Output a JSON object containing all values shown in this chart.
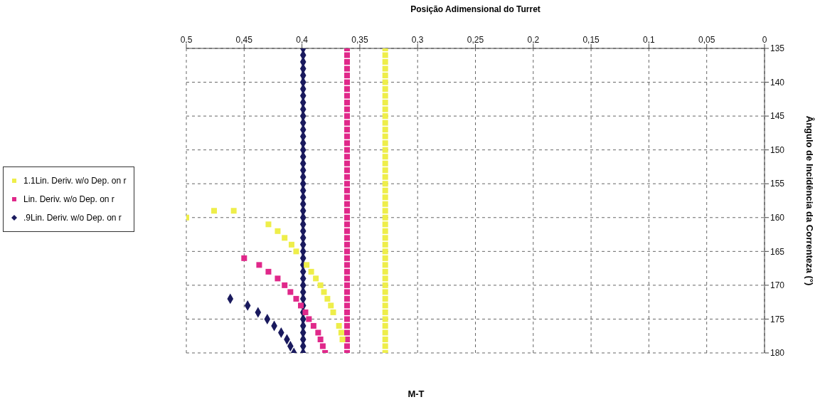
{
  "chart_data": {
    "type": "scatter",
    "title": "M-T",
    "xlabel": "Posição Adimensional do Turret",
    "ylabel": "Ângulo de Incidência da Correnteza (°)",
    "xlim": [
      0.5,
      0
    ],
    "ylim": [
      180,
      135
    ],
    "xticks": [
      0,
      {
        "value": 0.05,
        "label": "0,05"
      },
      {
        "value": 0.1,
        "label": "0,1"
      },
      {
        "value": 0.15,
        "label": "0,15"
      },
      {
        "value": 0.2,
        "label": "0,2"
      },
      {
        "value": 0.25,
        "label": "0,25"
      },
      {
        "value": 0.3,
        "label": "0,3"
      },
      {
        "value": 0.35,
        "label": "0,35"
      },
      {
        "value": 0.4,
        "label": "0,4"
      },
      {
        "value": 0.45,
        "label": "0,45"
      },
      {
        "value": 0.5,
        "label": "0,5"
      }
    ],
    "yticks": [
      135,
      140,
      145,
      150,
      155,
      160,
      165,
      170,
      175,
      180
    ],
    "grid": true,
    "legend": "left",
    "series": [
      {
        "name": ".9Lin. Deriv. w/o Dep. on r",
        "color": "#1a1a5e",
        "marker": "diamond",
        "x": [
          0.399,
          0.399,
          0.399,
          0.399,
          0.399,
          0.399,
          0.399,
          0.399,
          0.399,
          0.399,
          0.399,
          0.399,
          0.399,
          0.399,
          0.399,
          0.399,
          0.399,
          0.399,
          0.399,
          0.399,
          0.399,
          0.399,
          0.399,
          0.399,
          0.399,
          0.399,
          0.399,
          0.399,
          0.399,
          0.399,
          0.399,
          0.399,
          0.399,
          0.399,
          0.399,
          0.399,
          0.399,
          0.399,
          0.399,
          0.399,
          0.399,
          0.399,
          0.399,
          0.399,
          0.399,
          0.399,
          0.462,
          0.447,
          0.438,
          0.43,
          0.424,
          0.418,
          0.413,
          0.41,
          0.407
        ],
        "values": [
          135,
          136,
          137,
          138,
          139,
          140,
          141,
          142,
          143,
          144,
          145,
          146,
          147,
          148,
          149,
          150,
          151,
          152,
          153,
          154,
          155,
          156,
          157,
          158,
          159,
          160,
          161,
          162,
          163,
          164,
          165,
          166,
          167,
          168,
          169,
          170,
          171,
          172,
          173,
          174,
          175,
          176,
          177,
          178,
          179,
          180,
          172,
          173,
          174,
          175,
          176,
          177,
          178,
          179,
          180
        ]
      },
      {
        "name": "Lin. Deriv. w/o Dep. on r",
        "color": "#e0288a",
        "marker": "square",
        "x": [
          0.361,
          0.361,
          0.361,
          0.361,
          0.361,
          0.361,
          0.361,
          0.361,
          0.361,
          0.361,
          0.361,
          0.361,
          0.361,
          0.361,
          0.361,
          0.361,
          0.361,
          0.361,
          0.361,
          0.361,
          0.361,
          0.361,
          0.361,
          0.361,
          0.361,
          0.361,
          0.361,
          0.361,
          0.361,
          0.361,
          0.361,
          0.361,
          0.361,
          0.361,
          0.361,
          0.361,
          0.361,
          0.361,
          0.361,
          0.361,
          0.361,
          0.361,
          0.361,
          0.361,
          0.361,
          0.361,
          0.45,
          0.437,
          0.429,
          0.421,
          0.415,
          0.41,
          0.405,
          0.401,
          0.397,
          0.394,
          0.39,
          0.386,
          0.384,
          0.382,
          0.38
        ],
        "values": [
          135,
          136,
          137,
          138,
          139,
          140,
          141,
          142,
          143,
          144,
          145,
          146,
          147,
          148,
          149,
          150,
          151,
          152,
          153,
          154,
          155,
          156,
          157,
          158,
          159,
          160,
          161,
          162,
          163,
          164,
          165,
          166,
          167,
          168,
          169,
          170,
          171,
          172,
          173,
          174,
          175,
          176,
          177,
          178,
          179,
          180,
          166,
          167,
          168,
          169,
          170,
          171,
          172,
          173,
          174,
          175,
          176,
          177,
          178,
          179,
          180
        ]
      },
      {
        "name": "1.1Lin. Deriv. w/o Dep. on r",
        "color": "#eeee4a",
        "marker": "square",
        "x": [
          0.328,
          0.328,
          0.328,
          0.328,
          0.328,
          0.328,
          0.328,
          0.328,
          0.328,
          0.328,
          0.328,
          0.328,
          0.328,
          0.328,
          0.328,
          0.328,
          0.328,
          0.328,
          0.328,
          0.328,
          0.328,
          0.328,
          0.328,
          0.328,
          0.328,
          0.328,
          0.328,
          0.328,
          0.328,
          0.328,
          0.328,
          0.328,
          0.328,
          0.328,
          0.328,
          0.328,
          0.328,
          0.328,
          0.328,
          0.328,
          0.328,
          0.328,
          0.328,
          0.328,
          0.328,
          0.328,
          0.476,
          0.459,
          0.5,
          0.429,
          0.421,
          0.415,
          0.409,
          0.405,
          0.396,
          0.392,
          0.388,
          0.384,
          0.381,
          0.378,
          0.375,
          0.373,
          0.368,
          0.366,
          0.365
        ],
        "values": [
          135,
          136,
          137,
          138,
          139,
          140,
          141,
          142,
          143,
          144,
          145,
          146,
          147,
          148,
          149,
          150,
          151,
          152,
          153,
          154,
          155,
          156,
          157,
          158,
          159,
          160,
          161,
          162,
          163,
          164,
          165,
          166,
          167,
          168,
          169,
          170,
          171,
          172,
          173,
          174,
          175,
          176,
          177,
          178,
          179,
          180,
          159,
          159,
          160,
          161,
          162,
          163,
          164,
          165,
          167,
          168,
          169,
          170,
          171,
          172,
          173,
          174,
          176,
          177,
          178
        ]
      }
    ]
  }
}
